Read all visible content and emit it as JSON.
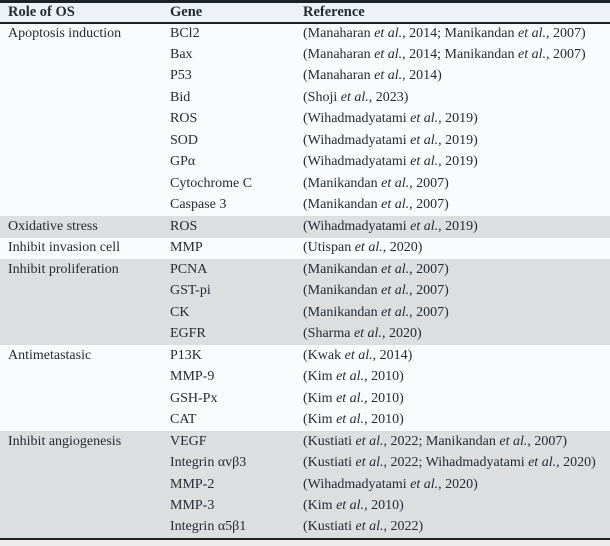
{
  "table": {
    "columns": [
      "Role of OS",
      "Gene",
      "Reference"
    ],
    "italic_phrase": "et al.",
    "colors": {
      "shaded_row": "#dcdee0",
      "plain_row": "#fafbfc",
      "header_bg": "#eef2f7",
      "rule": "#1d2228"
    },
    "sections": [
      {
        "role": "Apoptosis induction",
        "shaded": false,
        "rows": [
          {
            "gene": "BCl2",
            "reference": "(Manaharan et al., 2014; Manikandan et al., 2007)"
          },
          {
            "gene": "Bax",
            "reference": "(Manaharan et al., 2014; Manikandan et al., 2007)"
          },
          {
            "gene": "P53",
            "reference": "(Manaharan et al., 2014)"
          },
          {
            "gene": "Bid",
            "reference": "(Shoji et al., 2023)"
          },
          {
            "gene": "ROS",
            "reference": "(Wihadmadyatami et al., 2019)"
          },
          {
            "gene": "SOD",
            "reference": "(Wihadmadyatami et al., 2019)"
          },
          {
            "gene": "GPα",
            "reference": "(Wihadmadyatami et al., 2019)"
          },
          {
            "gene": "Cytochrome C",
            "reference": "(Manikandan et al., 2007)"
          },
          {
            "gene": "Caspase 3",
            "reference": "(Manikandan et al., 2007)"
          }
        ]
      },
      {
        "role": "Oxidative stress",
        "shaded": true,
        "rows": [
          {
            "gene": "ROS",
            "reference": "(Wihadmadyatami et al., 2019)"
          }
        ]
      },
      {
        "role": "Inhibit invasion cell",
        "shaded": false,
        "rows": [
          {
            "gene": "MMP",
            "reference": "(Utispan et al., 2020)"
          }
        ]
      },
      {
        "role": "Inhibit proliferation",
        "shaded": true,
        "rows": [
          {
            "gene": "PCNA",
            "reference": "(Manikandan et al., 2007)"
          },
          {
            "gene": "GST-pi",
            "reference": "(Manikandan et al., 2007)"
          },
          {
            "gene": "CK",
            "reference": "(Manikandan et al., 2007)"
          },
          {
            "gene": "EGFR",
            "reference": "(Sharma et al., 2020)"
          }
        ]
      },
      {
        "role": "Antimetastasic",
        "shaded": false,
        "rows": [
          {
            "gene": "P13K",
            "reference": "(Kwak et al., 2014)"
          },
          {
            "gene": "MMP-9",
            "reference": "(Kim et al., 2010)"
          },
          {
            "gene": "GSH-Px",
            "reference": "(Kim et al., 2010)"
          },
          {
            "gene": "CAT",
            "reference": "(Kim et al., 2010)"
          }
        ]
      },
      {
        "role": "Inhibit angiogenesis",
        "shaded": true,
        "rows": [
          {
            "gene": "VEGF",
            "reference": "(Kustiati et al., 2022; Manikandan et al., 2007)"
          },
          {
            "gene": "Integrin αvβ3",
            "reference": "(Kustiati et al., 2022; Wihadmadyatami et al., 2020)"
          },
          {
            "gene": "MMP-2",
            "reference": "(Wihadmadyatami et al., 2020)"
          },
          {
            "gene": "MMP-3",
            "reference": "(Kim et al., 2010)"
          },
          {
            "gene": "Integrin α5β1",
            "reference": "(Kustiati et al., 2022)"
          }
        ]
      }
    ]
  }
}
